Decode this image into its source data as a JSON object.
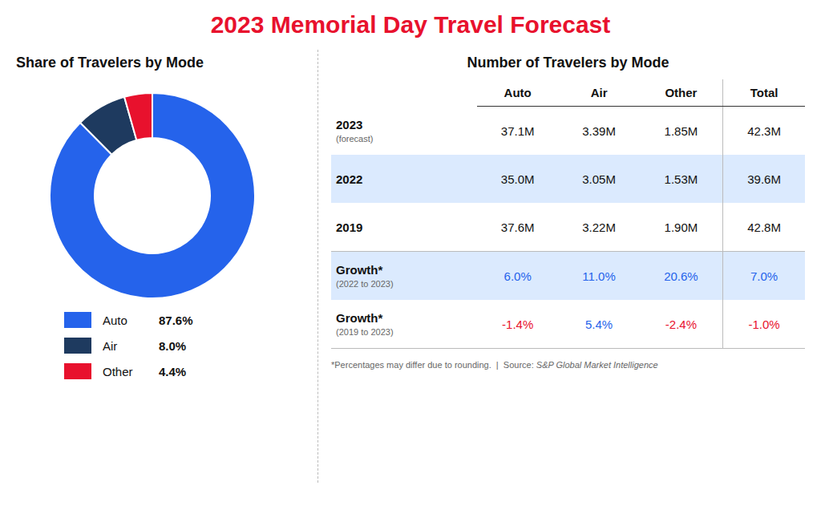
{
  "chart_data": [
    {
      "type": "donut",
      "title": "2023 Memorial Day Travel Forecast",
      "subtitle": "Share of Travelers by Mode",
      "categories": [
        "Auto",
        "Air",
        "Other"
      ],
      "values": [
        87.6,
        8.0,
        4.4
      ],
      "value_labels": [
        "87.6%",
        "8.0%",
        "4.4%"
      ],
      "colors": [
        "#2563EB",
        "#1E3A5F",
        "#E8112D"
      ],
      "legend": "bottom"
    },
    {
      "type": "table",
      "title": "Number of Travelers by Mode",
      "columns": [
        "Auto",
        "Air",
        "Other",
        "Total"
      ],
      "rows": [
        {
          "label": "2023",
          "sublabel": "(forecast)",
          "values": [
            37.1,
            3.39,
            1.85,
            42.3
          ],
          "value_labels": [
            "37.1M",
            "3.39M",
            "1.85M",
            "42.3M"
          ]
        },
        {
          "label": "2022",
          "values": [
            35.0,
            3.05,
            1.53,
            39.6
          ],
          "value_labels": [
            "35.0M",
            "3.05M",
            "1.53M",
            "39.6M"
          ]
        },
        {
          "label": "2019",
          "values": [
            37.6,
            3.22,
            1.9,
            42.8
          ],
          "value_labels": [
            "37.6M",
            "3.22M",
            "1.90M",
            "42.8M"
          ]
        },
        {
          "label": "Growth*",
          "sublabel": "(2022 to 2023)",
          "values": [
            6.0,
            11.0,
            20.6,
            7.0
          ],
          "value_labels": [
            "6.0%",
            "11.0%",
            "20.6%",
            "7.0%"
          ],
          "colors": [
            "#2563EB",
            "#2563EB",
            "#2563EB",
            "#2563EB"
          ]
        },
        {
          "label": "Growth*",
          "sublabel": "(2019 to 2023)",
          "values": [
            -1.4,
            5.4,
            -2.4,
            -1.0
          ],
          "value_labels": [
            "-1.4%",
            "5.4%",
            "-2.4%",
            "-1.0%"
          ],
          "colors": [
            "#E8112D",
            "#2563EB",
            "#E8112D",
            "#E8112D"
          ]
        }
      ],
      "annotations": [
        "*Percentages may differ due to rounding.  |  Source: ",
        "S&P Global Market Intelligence"
      ]
    }
  ]
}
